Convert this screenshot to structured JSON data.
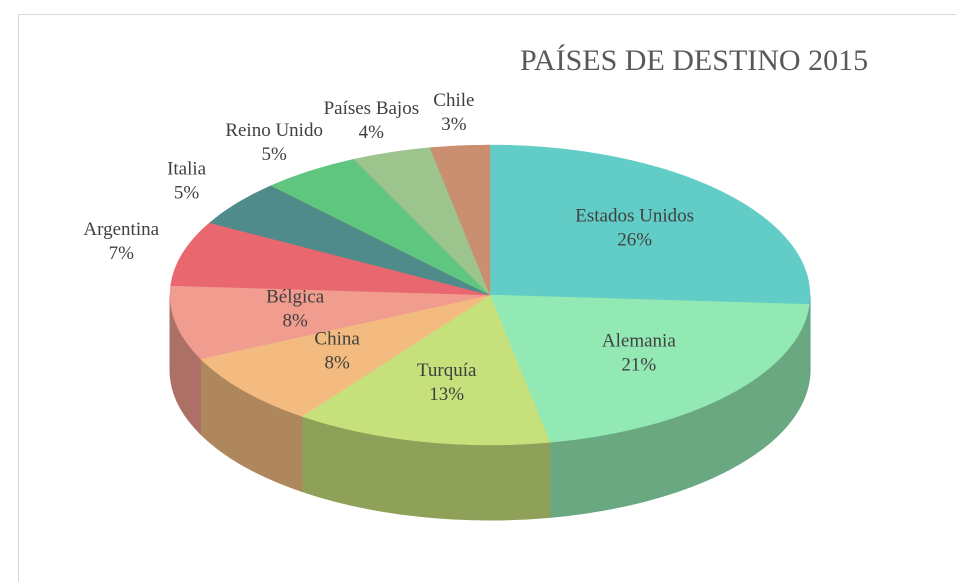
{
  "chart_data": {
    "type": "pie",
    "title": "PAÍSES DE DESTINO 2015",
    "categories": [
      "Estados Unidos",
      "Alemania",
      "Turquía",
      "China",
      "Bélgica",
      "Argentina",
      "Italia",
      "Reino Unido",
      "Países Bajos",
      "Chile"
    ],
    "values": [
      26,
      21,
      13,
      8,
      8,
      7,
      5,
      5,
      4,
      3
    ],
    "value_labels": [
      "26%",
      "21%",
      "13%",
      "8%",
      "8%",
      "7%",
      "5%",
      "5%",
      "4%",
      "3%"
    ],
    "colors": [
      "#62cdc6",
      "#92e9b3",
      "#c6e07c",
      "#f3bb80",
      "#f09c8e",
      "#e9676e",
      "#4f8b8a",
      "#5fc57f",
      "#9cc48c",
      "#c98f70"
    ]
  }
}
